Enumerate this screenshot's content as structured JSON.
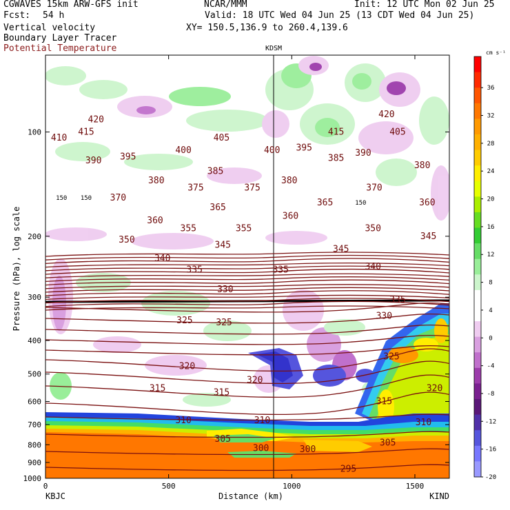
{
  "header": {
    "model": "CGWAVES 15km ARW-GFS init",
    "fcst_label": "Fcst:",
    "fcst_value": "54 h",
    "field1": "Vertical velocity",
    "field2": "Boundary Layer Tracer",
    "field3": "Potential Temperature",
    "org": "NCAR/MMM",
    "init": "Init: 12 UTC Mon 02 Jun 25",
    "valid": "Valid: 18 UTC Wed 04 Jun 25 (13 CDT Wed 04 Jun 25)",
    "xy": "XY= 150.5,136.9 to 260.4,139.6",
    "station_mid": "KDSM",
    "station_left": "KBJC",
    "station_right": "KIND",
    "colors": {
      "theta_label": "#8b1a1a"
    }
  },
  "chart_data": {
    "type": "heatmap",
    "title": "Vertical velocity",
    "xlabel": "Distance (km)",
    "ylabel": "Pressure (hPa), log scale",
    "xlim": [
      0,
      1640
    ],
    "ylim": [
      1000,
      60
    ],
    "xticks": [
      0,
      500,
      1000,
      1500
    ],
    "yticks": [
      100,
      200,
      300,
      400,
      500,
      600,
      700,
      800,
      900,
      1000
    ],
    "colorbar": {
      "unit": "cm s⁻¹",
      "labels": [
        "36",
        "32",
        "28",
        "24",
        "20",
        "16",
        "12",
        "8",
        "4",
        "0",
        "-4",
        "-8",
        "-12",
        "-16",
        "-20"
      ],
      "colors": [
        "#ff0000",
        "#ff2a00",
        "#ff5500",
        "#ff7700",
        "#ff9900",
        "#ffb000",
        "#ffcc00",
        "#ffee00",
        "#e6ff00",
        "#aaee00",
        "#66dd22",
        "#33cc33",
        "#66dd66",
        "#99ee99",
        "#ccf5cc",
        "#ffffff",
        "#ffffff",
        "#efccf0",
        "#d9a0e0",
        "#c070cc",
        "#9c3cab",
        "#7a2090",
        "#5a1878",
        "#5030a8",
        "#5555dd",
        "#7777ff",
        "#9999ff"
      ]
    },
    "theta_labels": [
      {
        "v": "420",
        "x": 205,
        "p": 92
      },
      {
        "v": "420",
        "x": 1385,
        "p": 89
      },
      {
        "v": "415",
        "x": 165,
        "p": 100
      },
      {
        "v": "415",
        "x": 1180,
        "p": 100
      },
      {
        "v": "410",
        "x": 55,
        "p": 104
      },
      {
        "v": "405",
        "x": 715,
        "p": 104
      },
      {
        "v": "405",
        "x": 1430,
        "p": 100
      },
      {
        "v": "400",
        "x": 560,
        "p": 113
      },
      {
        "v": "400",
        "x": 920,
        "p": 113
      },
      {
        "v": "395",
        "x": 335,
        "p": 118
      },
      {
        "v": "395",
        "x": 1050,
        "p": 111
      },
      {
        "v": "390",
        "x": 195,
        "p": 121
      },
      {
        "v": "390",
        "x": 1290,
        "p": 115
      },
      {
        "v": "385",
        "x": 690,
        "p": 130
      },
      {
        "v": "385",
        "x": 1180,
        "p": 119
      },
      {
        "v": "380",
        "x": 450,
        "p": 138
      },
      {
        "v": "380",
        "x": 990,
        "p": 138
      },
      {
        "v": "380",
        "x": 1530,
        "p": 125
      },
      {
        "v": "375",
        "x": 610,
        "p": 145
      },
      {
        "v": "375",
        "x": 840,
        "p": 145
      },
      {
        "v": "370",
        "x": 295,
        "p": 155
      },
      {
        "v": "370",
        "x": 1335,
        "p": 145
      },
      {
        "v": "365",
        "x": 700,
        "p": 165
      },
      {
        "v": "365",
        "x": 1135,
        "p": 160
      },
      {
        "v": "360",
        "x": 445,
        "p": 180
      },
      {
        "v": "360",
        "x": 995,
        "p": 175
      },
      {
        "v": "360",
        "x": 1550,
        "p": 160
      },
      {
        "v": "355",
        "x": 580,
        "p": 190
      },
      {
        "v": "355",
        "x": 805,
        "p": 190
      },
      {
        "v": "350",
        "x": 330,
        "p": 205
      },
      {
        "v": "350",
        "x": 1330,
        "p": 190
      },
      {
        "v": "345",
        "x": 720,
        "p": 212
      },
      {
        "v": "345",
        "x": 1200,
        "p": 218
      },
      {
        "v": "345",
        "x": 1555,
        "p": 200
      },
      {
        "v": "340",
        "x": 475,
        "p": 232
      },
      {
        "v": "340",
        "x": 1330,
        "p": 245
      },
      {
        "v": "335",
        "x": 605,
        "p": 250
      },
      {
        "v": "335",
        "x": 955,
        "p": 250
      },
      {
        "v": "335",
        "x": 1430,
        "p": 305
      },
      {
        "v": "330",
        "x": 730,
        "p": 285
      },
      {
        "v": "330",
        "x": 1375,
        "p": 340
      },
      {
        "v": "325",
        "x": 565,
        "p": 350
      },
      {
        "v": "325",
        "x": 725,
        "p": 355
      },
      {
        "v": "325",
        "x": 1405,
        "p": 445
      },
      {
        "v": "320",
        "x": 575,
        "p": 475
      },
      {
        "v": "320",
        "x": 850,
        "p": 520
      },
      {
        "v": "320",
        "x": 1580,
        "p": 550
      },
      {
        "v": "315",
        "x": 455,
        "p": 550
      },
      {
        "v": "315",
        "x": 715,
        "p": 565
      },
      {
        "v": "315",
        "x": 1375,
        "p": 600
      },
      {
        "v": "310",
        "x": 560,
        "p": 680
      },
      {
        "v": "310",
        "x": 880,
        "p": 680
      },
      {
        "v": "310",
        "x": 1535,
        "p": 690
      },
      {
        "v": "305",
        "x": 720,
        "p": 770
      },
      {
        "v": "305",
        "x": 1390,
        "p": 790
      },
      {
        "v": "300",
        "x": 875,
        "p": 820
      },
      {
        "v": "300",
        "x": 1065,
        "p": 825
      },
      {
        "v": "295",
        "x": 1230,
        "p": 940
      }
    ],
    "tracer_labels": [
      {
        "v": "150",
        "x": 65,
        "p": 155
      },
      {
        "v": "150",
        "x": 165,
        "p": 155
      },
      {
        "v": "150",
        "x": 1280,
        "p": 160
      }
    ]
  }
}
